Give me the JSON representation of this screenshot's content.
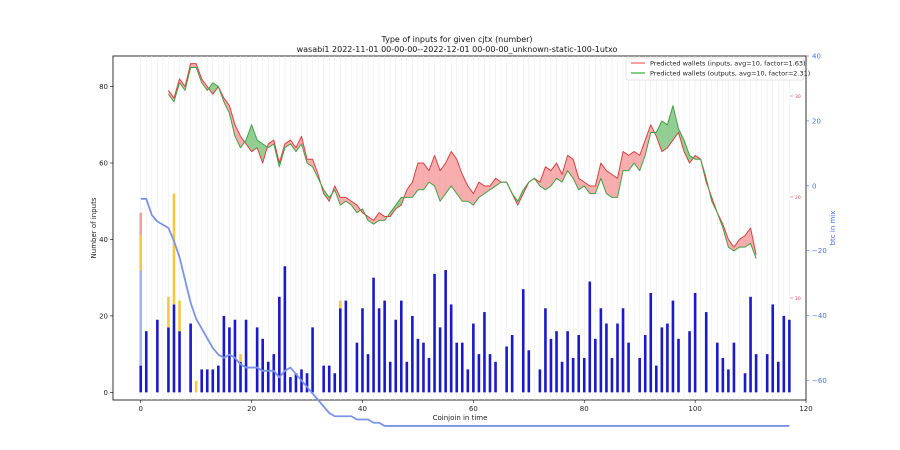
{
  "chart_data": {
    "type": "bar",
    "title": "Type of inputs for given cjtx (number)",
    "subtitle": "wasabi1 2022-11-01 00-00-00--2022-12-01 00-00-00_unknown-static-100-1utxo",
    "xlabel": "Coinjoin in time",
    "ylabel": "Number of inputs",
    "y2label": "btc in mix",
    "xlim": [
      -5,
      120
    ],
    "ylim": [
      -2,
      88
    ],
    "y2lim": [
      -66,
      40
    ],
    "x_ticks": [
      0,
      20,
      40,
      60,
      80,
      100,
      120
    ],
    "y_ticks": [
      0,
      20,
      40,
      60,
      80
    ],
    "y2_ticks": [
      -60,
      -40,
      -20,
      0,
      20,
      40
    ],
    "y3_ticks": [
      10,
      20,
      30
    ],
    "x_ticks_text": [
      "0",
      "20",
      "40",
      "60",
      "80",
      "100",
      "120"
    ],
    "y_ticks_text": [
      "0",
      "20",
      "40",
      "60",
      "80"
    ],
    "y2_ticks_text": [
      "−60",
      "−40",
      "−20",
      "0",
      "20",
      "40"
    ],
    "y3_ticks_text": [
      "10",
      "20",
      "30"
    ],
    "legend": {
      "position": "top-right",
      "entries": [
        {
          "label": "Predicted wallets (inputs, avg=10, factor=1.63)",
          "color": "#f08080"
        },
        {
          "label": "Predicted wallets (outputs, avg=10, factor=2.31)",
          "color": "#5cbf5c"
        }
      ]
    },
    "colors": {
      "fresh": "#1a1acc",
      "remix": "#a8b4f0",
      "yellow": "#f5c842",
      "pink": "#f0a0a0",
      "dark": "#702020",
      "btc_line": "#7b93e6",
      "inputs_line": "#d94040",
      "outputs_line": "#44a044",
      "fill_red": "#f26b6b",
      "fill_green": "#3aa83a"
    },
    "bars": {
      "fresh": [
        7,
        16,
        0,
        19,
        0,
        17,
        23,
        16,
        0,
        18,
        0,
        6,
        6,
        6,
        7,
        20,
        17,
        19,
        8,
        19,
        0,
        17,
        14,
        8,
        10,
        25,
        33,
        4,
        5,
        6,
        5,
        17,
        0,
        7,
        7,
        5,
        22,
        24,
        0,
        13,
        22,
        10,
        30,
        22,
        24,
        8,
        19,
        24,
        8,
        20,
        14,
        13,
        9,
        31,
        17,
        32,
        23,
        13,
        13,
        6,
        18,
        10,
        21,
        10,
        8,
        0,
        12,
        15,
        0,
        27,
        11,
        0,
        6,
        22,
        14,
        16,
        8,
        16,
        9,
        15,
        9,
        29,
        14,
        22,
        18,
        9,
        18,
        22,
        13,
        0,
        9,
        15,
        26,
        7,
        17,
        18,
        24,
        14,
        0,
        16,
        26,
        0,
        21,
        0,
        13,
        9,
        6,
        13,
        0,
        5,
        25,
        10,
        0,
        10,
        23,
        8,
        20,
        19
      ],
      "remix": [
        25,
        0,
        0,
        0,
        0,
        0,
        0,
        0,
        0,
        0,
        0,
        0,
        0,
        0,
        0,
        0,
        0,
        0,
        0,
        0,
        0,
        0,
        0,
        0,
        0,
        0,
        0,
        0,
        0,
        0,
        0,
        0,
        0,
        0,
        0,
        0,
        0,
        0,
        0,
        0,
        0,
        0,
        0,
        0,
        0,
        0,
        0,
        0,
        0,
        0,
        0,
        0,
        0,
        0,
        0,
        0,
        0,
        0,
        0,
        0,
        0,
        0,
        0,
        0,
        0,
        0,
        0,
        0,
        0,
        0,
        0,
        0,
        0,
        0,
        0,
        0,
        0,
        0,
        0,
        0,
        0,
        0,
        0,
        0,
        0,
        0,
        0,
        0,
        0,
        0,
        0,
        0,
        0,
        0,
        0,
        0,
        0,
        0,
        0,
        0,
        0,
        0,
        0,
        0,
        0,
        0,
        0,
        0,
        0,
        0,
        0,
        0,
        0,
        0,
        0,
        0,
        0,
        0
      ],
      "yellow": [
        9,
        0,
        0,
        0,
        0,
        8,
        29,
        8,
        0,
        0,
        3,
        0,
        0,
        0,
        0,
        0,
        0,
        0,
        2,
        0,
        0,
        0,
        0,
        0,
        0,
        0,
        0,
        0,
        0,
        0,
        0,
        0,
        0,
        0,
        0,
        0,
        2,
        0,
        0,
        0,
        0,
        0,
        0,
        0,
        0,
        0,
        0,
        0,
        0,
        0,
        0,
        0,
        0,
        0,
        0,
        0,
        0,
        0,
        0,
        0,
        0,
        0,
        0,
        0,
        0,
        0,
        0,
        0,
        0,
        0,
        0,
        0,
        0,
        0,
        0,
        0,
        0,
        0,
        0,
        0,
        0,
        0,
        0,
        0,
        0,
        0,
        0,
        0,
        0,
        0,
        0,
        0,
        0,
        0,
        0,
        0,
        0,
        0,
        0,
        0,
        0,
        0,
        0,
        0,
        0,
        0,
        0,
        0,
        0,
        0,
        0,
        0,
        0,
        0,
        0,
        0,
        0,
        0
      ],
      "pink": [
        6,
        0,
        0,
        0,
        0,
        0,
        0,
        0,
        0,
        0,
        0,
        0,
        0,
        0,
        0,
        0,
        0,
        0,
        0,
        0,
        0,
        0,
        0,
        0,
        0,
        0,
        0,
        0,
        0,
        0,
        0,
        0,
        0,
        0,
        0,
        0,
        0,
        0,
        0,
        0,
        0,
        0,
        0,
        0,
        0,
        0,
        0,
        0,
        0,
        0,
        0,
        0,
        0,
        0,
        0,
        0,
        0,
        0,
        0,
        0,
        0,
        0,
        0,
        0,
        0,
        0,
        0,
        0,
        0,
        0,
        0,
        0,
        0,
        0,
        0,
        0,
        0,
        0,
        0,
        0,
        0,
        0,
        0,
        0,
        0,
        0,
        0,
        0,
        0,
        0,
        0,
        0,
        0,
        0,
        0,
        0,
        0,
        0,
        0,
        0,
        0,
        0,
        0,
        0,
        0,
        0,
        0,
        0,
        0,
        0,
        0,
        0,
        0,
        0,
        0,
        0,
        0,
        0
      ]
    },
    "series": [
      {
        "name": "Predicted wallets (inputs, avg=10, factor=1.63)",
        "x": [
          5,
          6,
          7,
          8,
          9,
          10,
          11,
          12,
          13,
          14,
          15,
          16,
          17,
          18,
          19,
          20,
          21,
          22,
          23,
          24,
          25,
          26,
          27,
          28,
          29,
          30,
          31,
          32,
          33,
          34,
          35,
          36,
          37,
          38,
          39,
          40,
          41,
          42,
          43,
          44,
          45,
          46,
          47,
          48,
          49,
          50,
          51,
          52,
          53,
          54,
          55,
          56,
          57,
          58,
          59,
          60,
          61,
          62,
          63,
          64,
          65,
          66,
          67,
          68,
          69,
          70,
          71,
          72,
          73,
          74,
          75,
          76,
          77,
          78,
          79,
          80,
          81,
          82,
          83,
          84,
          85,
          86,
          87,
          88,
          89,
          90,
          91,
          92,
          93,
          94,
          95,
          96,
          97,
          98,
          99,
          100,
          101,
          102,
          103,
          104,
          105,
          106,
          107,
          108,
          109,
          110,
          111
        ],
        "values": [
          79,
          77,
          82,
          80,
          86,
          86,
          82,
          80,
          78,
          80,
          77,
          75,
          70,
          67,
          65,
          63,
          64,
          60,
          65,
          66,
          60,
          65,
          66,
          64,
          67,
          61,
          61,
          57,
          52,
          50,
          54,
          51,
          51,
          50,
          49,
          47,
          46,
          45,
          47,
          46,
          46,
          48,
          49,
          53,
          55,
          60,
          60,
          58,
          62,
          58,
          60,
          63,
          61,
          57,
          54,
          52,
          55,
          54,
          54,
          56,
          55,
          55,
          52,
          49,
          52,
          55,
          56,
          55,
          59,
          58,
          60,
          57,
          62,
          61,
          56,
          55,
          54,
          54,
          60,
          58,
          57,
          56,
          63,
          62,
          63,
          62,
          66,
          70,
          67,
          63,
          64,
          66,
          68,
          63,
          60,
          62,
          61,
          55,
          51,
          47,
          44,
          40,
          38,
          40,
          41,
          43,
          36
        ]
      },
      {
        "name": "Predicted wallets (outputs, avg=10, factor=2.31)",
        "x": [
          5,
          6,
          7,
          8,
          9,
          10,
          11,
          12,
          13,
          14,
          15,
          16,
          17,
          18,
          19,
          20,
          21,
          22,
          23,
          24,
          25,
          26,
          27,
          28,
          29,
          30,
          31,
          32,
          33,
          34,
          35,
          36,
          37,
          38,
          39,
          40,
          41,
          42,
          43,
          44,
          45,
          46,
          47,
          48,
          49,
          50,
          51,
          52,
          53,
          54,
          55,
          56,
          57,
          58,
          59,
          60,
          61,
          62,
          63,
          64,
          65,
          66,
          67,
          68,
          69,
          70,
          71,
          72,
          73,
          74,
          75,
          76,
          77,
          78,
          79,
          80,
          81,
          82,
          83,
          84,
          85,
          86,
          87,
          88,
          89,
          90,
          91,
          92,
          93,
          94,
          95,
          96,
          97,
          98,
          99,
          100,
          101,
          102,
          103,
          104,
          105,
          106,
          107,
          108,
          109,
          110,
          111
        ],
        "values": [
          78,
          76,
          81,
          79,
          85,
          85,
          81,
          79,
          81,
          80,
          76,
          73,
          67,
          64,
          66,
          70,
          66,
          65,
          64,
          65,
          59,
          64,
          65,
          63,
          65,
          60,
          59,
          56,
          53,
          51,
          53,
          49,
          50,
          49,
          47,
          48,
          45,
          44,
          45,
          45,
          47,
          49,
          51,
          51,
          51,
          53,
          53,
          55,
          54,
          50,
          52,
          54,
          52,
          50,
          50,
          49,
          51,
          52,
          53,
          54,
          55,
          55,
          52,
          50,
          53,
          55,
          56,
          54,
          53,
          54,
          56,
          55,
          58,
          56,
          53,
          54,
          52,
          52,
          56,
          52,
          51,
          51,
          58,
          58,
          60,
          58,
          62,
          68,
          68,
          71,
          70,
          75,
          69,
          66,
          62,
          61,
          61,
          56,
          50,
          47,
          43,
          38,
          37,
          38,
          38,
          39,
          35
        ]
      },
      {
        "name": "btc in mix",
        "x": [
          0,
          1,
          2,
          3,
          4,
          5,
          6,
          7,
          8,
          9,
          10,
          11,
          12,
          13,
          14,
          15,
          16,
          17,
          18,
          19,
          20,
          21,
          22,
          23,
          24,
          25,
          26,
          27,
          28,
          29,
          30,
          31,
          32,
          33,
          34,
          35,
          36,
          37,
          38,
          39,
          40,
          41,
          42,
          43,
          44,
          45,
          46,
          47,
          48,
          49,
          50,
          51,
          52,
          53,
          54,
          55,
          56,
          57,
          58,
          59,
          60,
          61,
          62,
          63,
          64,
          65,
          66,
          67,
          68,
          69,
          70,
          71,
          72,
          73,
          74,
          75,
          76,
          77,
          78,
          79,
          80,
          81,
          82,
          83,
          84,
          85,
          86,
          87,
          88,
          89,
          90,
          91,
          92,
          93,
          94,
          95,
          96,
          97,
          98,
          99,
          100,
          101,
          102,
          103,
          104,
          105,
          106,
          107,
          108,
          109,
          110,
          111,
          112,
          113,
          114,
          115,
          116,
          117
        ],
        "values": [
          -4,
          -4,
          -9,
          -11,
          -12,
          -13,
          -17,
          -22,
          -29,
          -36,
          -41,
          -44,
          -47,
          -50,
          -52,
          -53,
          -52,
          -53,
          -55,
          -56,
          -56,
          -56,
          -57,
          -57,
          -57,
          -59,
          -57,
          -56,
          -58,
          -60,
          -62,
          -64,
          -66,
          -68,
          -70,
          -71,
          -71,
          -71,
          -71,
          -72,
          -72,
          -72,
          -73,
          -73,
          -74,
          -74,
          -74,
          -74,
          -74,
          -74,
          -74,
          -74,
          -74,
          -74,
          -74,
          -74,
          -74,
          -74,
          -74,
          -74,
          -74,
          -74,
          -74,
          -74,
          -74,
          -74,
          -74,
          -74,
          -74,
          -74,
          -74,
          -74,
          -74,
          -74,
          -74,
          -74,
          -74,
          -74,
          -74,
          -74,
          -74,
          -74,
          -74,
          -74,
          -74,
          -74,
          -74,
          -74,
          -74,
          -74,
          -74,
          -74,
          -74,
          -74,
          -74,
          -74,
          -74,
          -74,
          -74,
          -74,
          -74,
          -74,
          -74,
          -74,
          -74,
          -74,
          -74,
          -74,
          -74,
          -74,
          -74,
          -74,
          -74,
          -74,
          -74,
          -74,
          -74,
          -74
        ]
      }
    ]
  }
}
